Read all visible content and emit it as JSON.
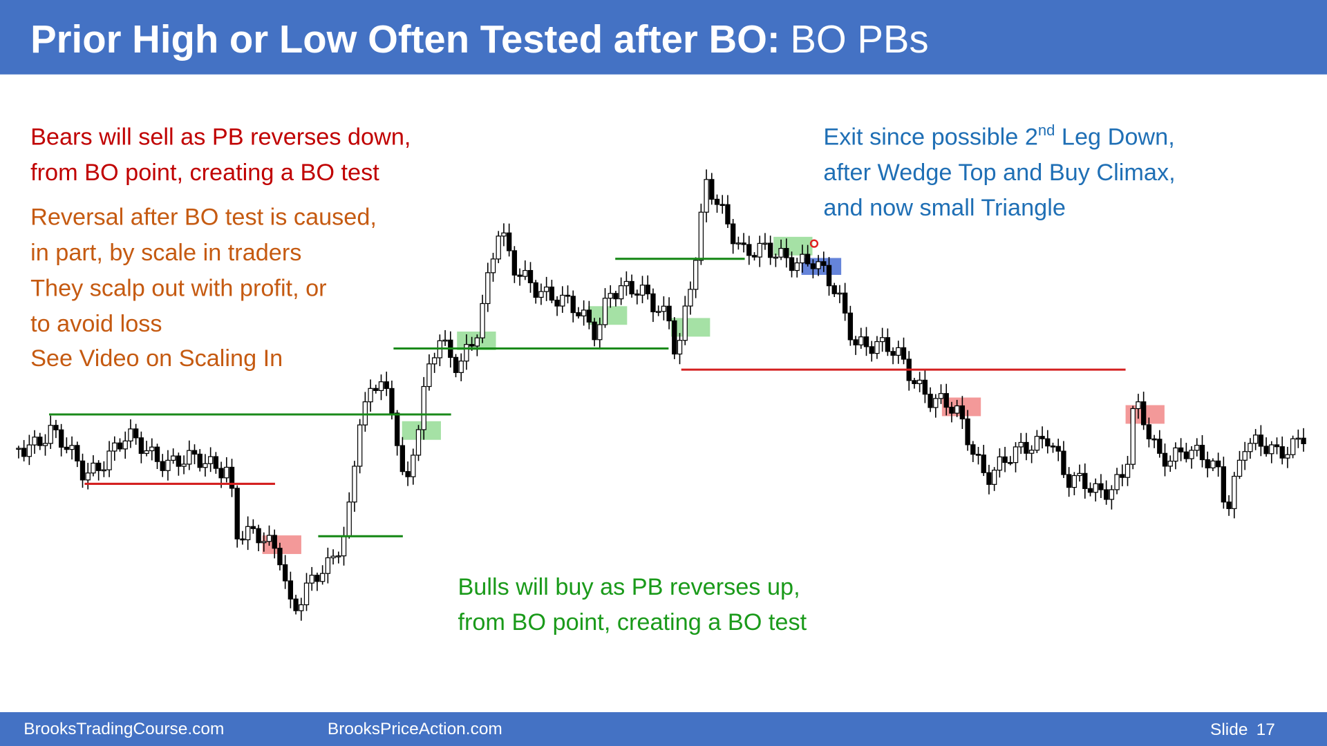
{
  "header": {
    "title_bold": "Prior High or Low Often Tested after BO:",
    "title_rest": "BO PBs"
  },
  "notes": {
    "bears": [
      "Bears will sell as PB reverses down,",
      "from BO point, creating a BO test"
    ],
    "reversal": [
      "Reversal after BO test is caused,",
      "in part, by scale in traders",
      "They scalp out with profit, or",
      "to avoid loss",
      "See Video on Scaling In"
    ],
    "exit": {
      "line1_start": "Exit since possible 2",
      "line1_sup": "nd",
      "line1_end": " Leg Down,",
      "line2": "after Wedge Top and Buy Climax,",
      "line3": "and now small Triangle"
    },
    "bulls": [
      "Bulls will buy as PB reverses up,",
      "from BO point, creating a BO test"
    ]
  },
  "footer": {
    "left": "BrooksTradingCourse.com",
    "middle": "BrooksPriceAction.com",
    "slide_label": "Slide",
    "slide_number": 17
  }
}
